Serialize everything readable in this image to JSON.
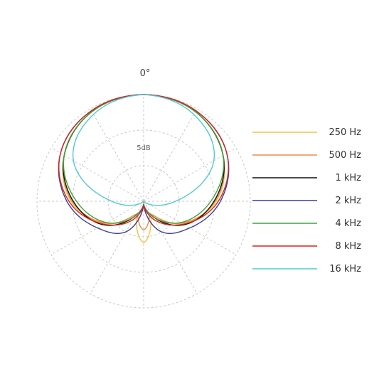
{
  "chart_data": {
    "type": "polar",
    "angle_label": "0°",
    "ring_label": "5dB",
    "grid": true,
    "legend_position": "right",
    "series": [
      {
        "name": "250 Hz",
        "color": "#f5c242",
        "theta": [
          0,
          30,
          60,
          90,
          120,
          150,
          180
        ],
        "r": [
          1.0,
          0.97,
          0.86,
          0.68,
          0.42,
          0.15,
          0.39
        ]
      },
      {
        "name": "500 Hz",
        "color": "#f08a4b",
        "theta": [
          0,
          30,
          60,
          90,
          120,
          150,
          180
        ],
        "r": [
          1.0,
          0.97,
          0.86,
          0.67,
          0.41,
          0.14,
          0.27
        ]
      },
      {
        "name": "1 kHz",
        "color": "#111111",
        "theta": [
          0,
          30,
          60,
          90,
          120,
          150,
          180
        ],
        "r": [
          1.0,
          0.97,
          0.86,
          0.66,
          0.44,
          0.16,
          0.03
        ]
      },
      {
        "name": "2 kHz",
        "color": "#3a3f9a",
        "theta": [
          0,
          30,
          60,
          90,
          120,
          150,
          180
        ],
        "r": [
          1.0,
          0.98,
          0.9,
          0.72,
          0.5,
          0.33,
          0.03
        ]
      },
      {
        "name": "4 kHz",
        "color": "#3aa63a",
        "theta": [
          0,
          30,
          60,
          90,
          120,
          150,
          180
        ],
        "r": [
          1.0,
          0.97,
          0.86,
          0.63,
          0.4,
          0.16,
          0.03
        ]
      },
      {
        "name": "8 kHz",
        "color": "#e02020",
        "theta": [
          0,
          30,
          60,
          90,
          120,
          150,
          180
        ],
        "r": [
          1.0,
          0.98,
          0.9,
          0.7,
          0.43,
          0.2,
          0.03
        ]
      },
      {
        "name": "16 kHz",
        "color": "#4fcad4",
        "theta": [
          0,
          30,
          60,
          90,
          120,
          150,
          180
        ],
        "r": [
          1.0,
          0.94,
          0.76,
          0.3,
          0.05,
          0.01,
          0.01
        ]
      }
    ]
  }
}
